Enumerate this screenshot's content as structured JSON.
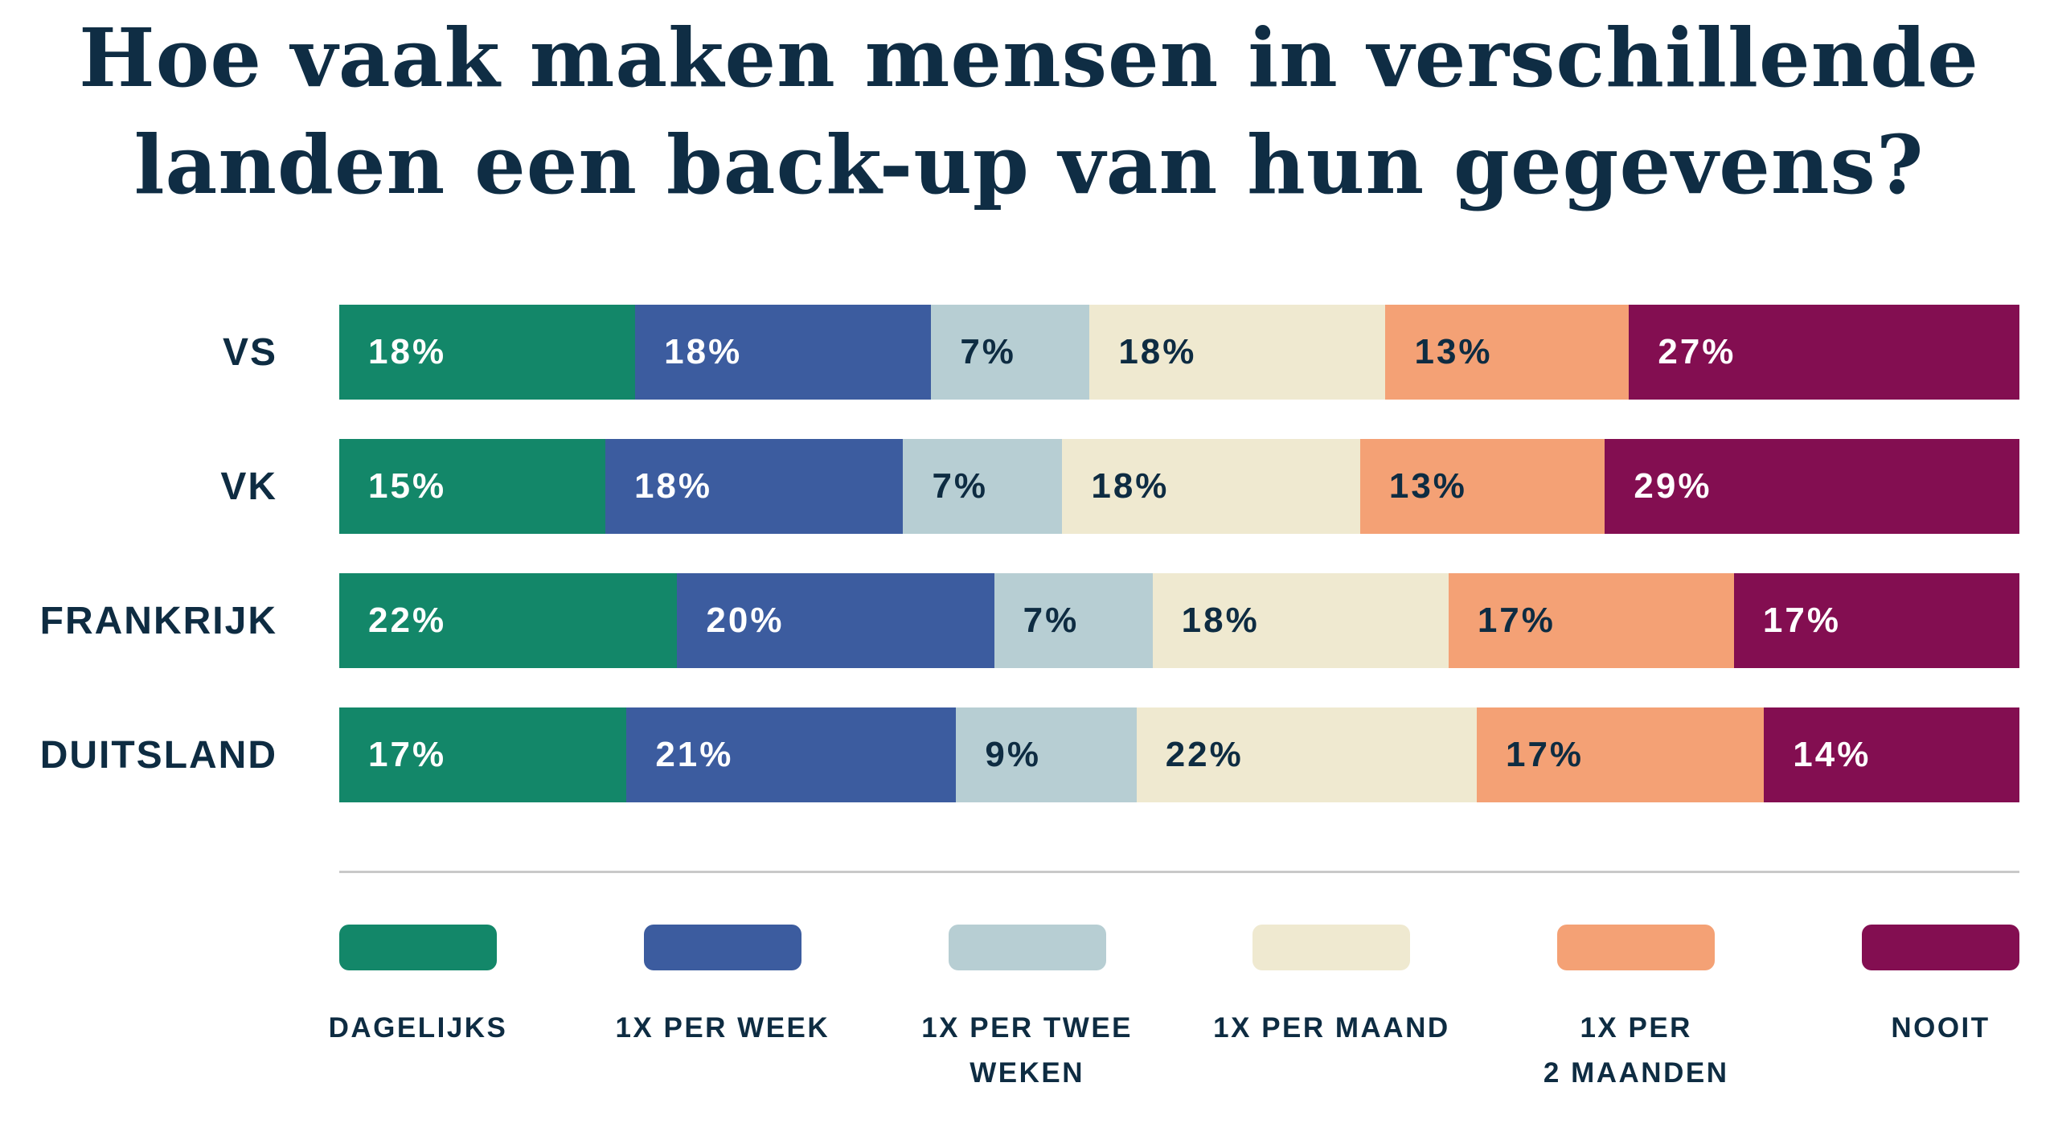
{
  "title": {
    "line1": "Hoe vaak maken mensen in verschillende",
    "line2": "landen een back-up van hun gegevens?"
  },
  "colors": {
    "background": "#ffffff",
    "text_navy": "#0e2c42",
    "title_navy": "#0f2d44",
    "divider_gray": "#c9c9c9",
    "green": "#138769",
    "blue": "#3c5c9f",
    "light_blue": "#b7ced3",
    "cream": "#efe9d0",
    "orange": "#f4a175",
    "plum": "#830e51"
  },
  "chart_data": {
    "type": "bar",
    "orientation": "horizontal",
    "stacked": true,
    "title": "Hoe vaak maken mensen in verschillende landen een back-up van hun gegevens?",
    "value_suffix": "%",
    "legend_position": "bottom",
    "categories": [
      "VS",
      "VK",
      "FRANKRIJK",
      "DUITSLAND"
    ],
    "series": [
      {
        "name": "DAGELIJKS",
        "legend_lines": [
          "DAGELIJKS"
        ],
        "color": "#138769",
        "label_color": "#ffffff",
        "values": [
          18,
          15,
          22,
          17
        ]
      },
      {
        "name": "1X PER WEEK",
        "legend_lines": [
          "1X PER WEEK"
        ],
        "color": "#3c5c9f",
        "label_color": "#ffffff",
        "values": [
          18,
          18,
          20,
          21
        ]
      },
      {
        "name": "1X PER TWEE WEKEN",
        "legend_lines": [
          "1X PER TWEE",
          "WEKEN"
        ],
        "color": "#b7ced3",
        "label_color": "#0e2c42",
        "values": [
          7,
          7,
          7,
          9
        ]
      },
      {
        "name": "1X PER MAAND",
        "legend_lines": [
          "1X PER MAAND"
        ],
        "color": "#efe9d0",
        "label_color": "#0e2c42",
        "values": [
          18,
          18,
          18,
          22
        ]
      },
      {
        "name": "1X PER 2 MAANDEN",
        "legend_lines": [
          "1X PER",
          "2 MAANDEN"
        ],
        "color": "#f4a175",
        "label_color": "#0e2c42",
        "values": [
          13,
          13,
          17,
          17
        ]
      },
      {
        "name": "NOOIT",
        "legend_lines": [
          "NOOIT"
        ],
        "color": "#830e51",
        "label_color": "#ffffff",
        "values": [
          27,
          29,
          17,
          14
        ]
      }
    ]
  }
}
